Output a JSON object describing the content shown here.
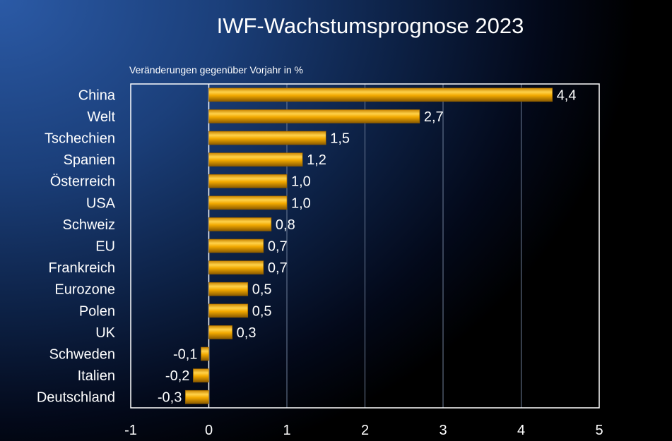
{
  "chart_data": {
    "type": "bar",
    "orientation": "horizontal",
    "title": "IWF-Wachstumsprognose 2023",
    "subtitle": "Veränderungen gegenüber Vorjahr in %",
    "categories": [
      "China",
      "Welt",
      "Tschechien",
      "Spanien",
      "Österreich",
      "USA",
      "Schweiz",
      "EU",
      "Frankreich",
      "Eurozone",
      "Polen",
      "UK",
      "Schweden",
      "Italien",
      "Deutschland"
    ],
    "values": [
      4.4,
      2.7,
      1.5,
      1.2,
      1.0,
      1.0,
      0.8,
      0.7,
      0.7,
      0.5,
      0.5,
      0.3,
      -0.1,
      -0.2,
      -0.3
    ],
    "value_labels": [
      "4,4",
      "2,7",
      "1,5",
      "1,2",
      "1,0",
      "1,0",
      "0,8",
      "0,7",
      "0,7",
      "0,5",
      "0,5",
      "0,3",
      "-0,1",
      "-0,2",
      "-0,3"
    ],
    "xlim": [
      -1,
      5
    ],
    "xticks": [
      -1,
      0,
      1,
      2,
      3,
      4,
      5
    ],
    "xtick_labels": [
      "-1",
      "0",
      "1",
      "2",
      "3",
      "4",
      "5"
    ],
    "grid": true,
    "bar_color": "#f2a900",
    "bar_highlight": "#ffd24a",
    "bar_shadow": "#8a5a00",
    "axis_color": "#ffffff",
    "grid_color": "#6f7f9a"
  }
}
